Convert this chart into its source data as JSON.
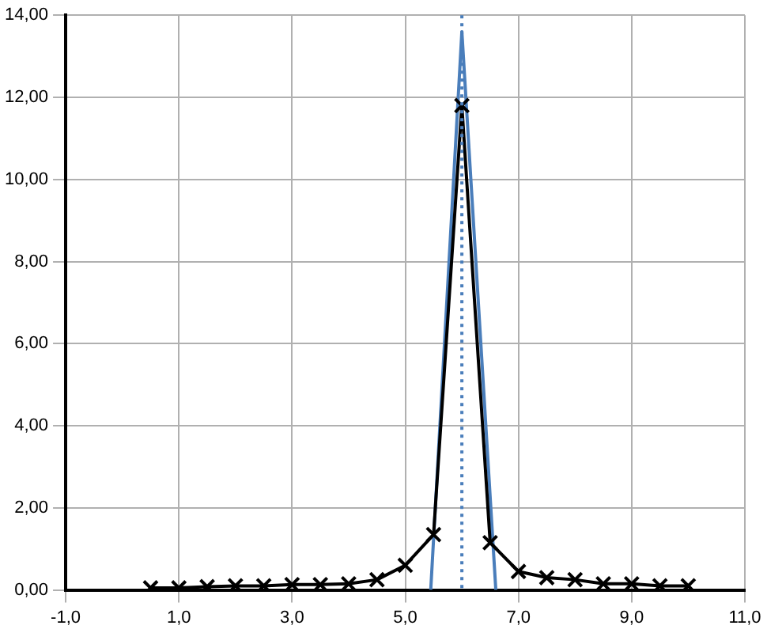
{
  "chart_data": {
    "type": "line",
    "x": [
      0.5,
      1,
      1.5,
      2,
      2.5,
      3,
      3.5,
      4,
      4.5,
      5,
      5.5,
      6,
      6.5,
      7,
      7.5,
      8,
      8.5,
      9,
      9.5,
      10
    ],
    "series": [
      {
        "color": "#000000",
        "values": [
          0.05,
          0.05,
          0.08,
          0.1,
          0.1,
          0.13,
          0.13,
          0.15,
          0.25,
          0.6,
          1.35,
          11.8,
          1.15,
          0.45,
          0.3,
          0.25,
          0.15,
          0.15,
          0.1,
          0.1
        ],
        "marker": "cross"
      },
      {
        "type": "line",
        "color": "#4a7ebb",
        "x": [
          5.45,
          6,
          6.6
        ],
        "values": [
          0,
          13.6,
          0
        ],
        "marker": "none"
      }
    ],
    "xlim": [
      -1,
      11
    ],
    "ylim": [
      0,
      14
    ],
    "xticks": [
      {
        "value": -1,
        "label": "-1,0"
      },
      {
        "value": 1,
        "label": "1,0"
      },
      {
        "value": 3,
        "label": "3,0"
      },
      {
        "value": 5,
        "label": "5,0"
      },
      {
        "value": 7,
        "label": "7,0"
      },
      {
        "value": 9,
        "label": "9,0"
      },
      {
        "value": 11,
        "label": "11,0"
      }
    ],
    "yticks": [
      {
        "value": 0,
        "label": "0,00"
      },
      {
        "value": 2,
        "label": "2,00"
      },
      {
        "value": 4,
        "label": "4,00"
      },
      {
        "value": 6,
        "label": "6,00"
      },
      {
        "value": 8,
        "label": "8,00"
      },
      {
        "value": 10,
        "label": "10,00"
      },
      {
        "value": 12,
        "label": "12,00"
      },
      {
        "value": 14,
        "label": "14,00"
      }
    ],
    "ref_lines": [
      {
        "axis": "x",
        "value": 6,
        "color": "#4a7ebb",
        "line_style": "dotted"
      }
    ],
    "grid": true,
    "legend": false
  }
}
